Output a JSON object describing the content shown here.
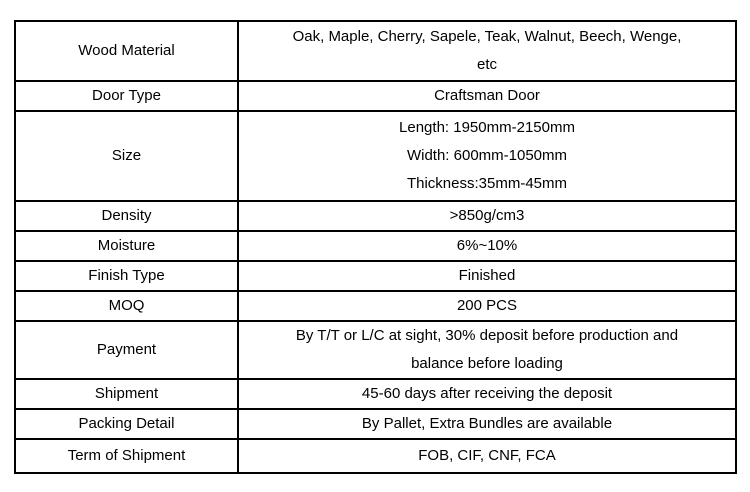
{
  "table": {
    "name": "product-specifications",
    "columns": [
      "attribute",
      "value"
    ],
    "rows": [
      {
        "label": "Wood Material",
        "value": [
          "Oak, Maple, Cherry, Sapele, Teak, Walnut, Beech, Wenge,",
          "etc"
        ]
      },
      {
        "label": "Door Type",
        "value": "Craftsman Door"
      },
      {
        "label": "Size",
        "value": [
          "Length: 1950mm-2150mm",
          "Width: 600mm-1050mm",
          "Thickness:35mm-45mm"
        ]
      },
      {
        "label": "Density",
        "value": ">850g/cm3"
      },
      {
        "label": "Moisture",
        "value": "6%~10%"
      },
      {
        "label": "Finish Type",
        "value": "Finished"
      },
      {
        "label": "MOQ",
        "value": "200 PCS"
      },
      {
        "label": "Payment",
        "value": [
          "By T/T or L/C at sight, 30% deposit before production and",
          "balance before loading"
        ]
      },
      {
        "label": "Shipment",
        "value": "45-60 days after receiving the deposit"
      },
      {
        "label": "Packing Detail",
        "value": "By Pallet, Extra Bundles are available"
      },
      {
        "label": "Term of Shipment",
        "value": "FOB, CIF, CNF, FCA"
      }
    ],
    "colors": {
      "border": "#000000",
      "text": "#000000",
      "background": "#ffffff"
    }
  }
}
